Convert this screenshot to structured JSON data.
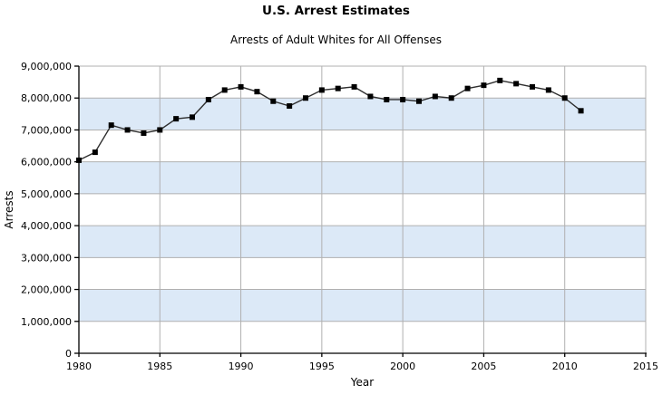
{
  "chart_data": {
    "type": "line",
    "title": "U.S. Arrest Estimates",
    "subtitle": "Arrests of Adult Whites for All Offenses",
    "xlabel": "Year",
    "ylabel": "Arrests",
    "xlim": [
      1980,
      2015
    ],
    "ylim": [
      0,
      9000000
    ],
    "x_ticks": [
      1980,
      1985,
      1990,
      1995,
      2000,
      2005,
      2010,
      2015
    ],
    "y_tick_step": 1000000,
    "grid": true,
    "legend": "none",
    "band_pattern": "alternating horizontal bands, odd millions filled",
    "colors": {
      "band_fill": "#dce9f7",
      "gridline": "#b0b0b0",
      "axis": "#000000",
      "line": "#2e2e2e",
      "marker": "#000000",
      "text": "#000000",
      "background": "#ffffff"
    },
    "series": [
      {
        "name": "Arrests of Adult Whites for All Offenses",
        "marker": "square",
        "x": [
          1980,
          1981,
          1982,
          1983,
          1984,
          1985,
          1986,
          1987,
          1988,
          1989,
          1990,
          1991,
          1992,
          1993,
          1994,
          1995,
          1996,
          1997,
          1998,
          1999,
          2000,
          2001,
          2002,
          2003,
          2004,
          2005,
          2006,
          2007,
          2008,
          2009,
          2010,
          2011
        ],
        "values": [
          6050000,
          6300000,
          7150000,
          7000000,
          6900000,
          7000000,
          7350000,
          7400000,
          7950000,
          8250000,
          8350000,
          8200000,
          7900000,
          7750000,
          8000000,
          8250000,
          8300000,
          8350000,
          8050000,
          7950000,
          7950000,
          7900000,
          8050000,
          8000000,
          8300000,
          8400000,
          8550000,
          8450000,
          8350000,
          8250000,
          8000000,
          7600000
        ]
      }
    ]
  }
}
